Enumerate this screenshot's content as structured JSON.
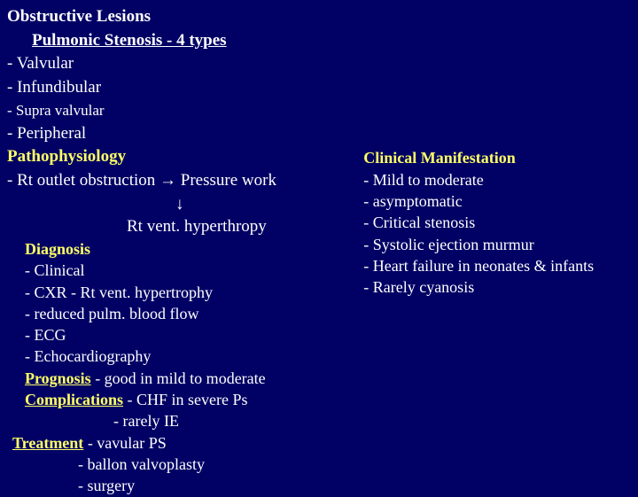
{
  "colors": {
    "background": "#000065",
    "text": "#ffffff",
    "accent": "#ffff66"
  },
  "typography": {
    "family": "Times New Roman",
    "title_size": 19,
    "body_size": 18,
    "small_size": 17
  },
  "header": {
    "title": "Obstructive Lesions",
    "subtitle": "Pulmonic Stenosis - 4 types",
    "types": [
      "- Valvular",
      "- Infundibular",
      "- Supra valvular",
      "- Peripheral"
    ]
  },
  "left": {
    "pathophys_label": "Pathophysiology",
    "patho_line": "- Rt outlet obstruction → Pressure work",
    "arrow": "↓",
    "result": "Rt vent. hyperthropy",
    "diagnosis_label": "Diagnosis",
    "diag_items": [
      "- Clinical",
      "- CXR  - Rt vent. hypertrophy",
      "- reduced pulm. blood flow",
      "- ECG",
      "- Echocardiography"
    ],
    "prognosis_label": "Prognosis",
    "prognosis_text": "  - good in mild to moderate",
    "complications_label": "Complications",
    "complications_text": "   - CHF in severe Ps",
    "complications_line2": "- rarely IE",
    "treatment_label": "Treatment",
    "treatment_text": " - vavular PS",
    "treatment_items": [
      "- ballon valvoplasty",
      "- surgery"
    ]
  },
  "right": {
    "heading": "Clinical Manifestation",
    "items": [
      "- Mild to moderate",
      "- asymptomatic",
      "- Critical stenosis",
      "- Systolic ejection murmur",
      "- Heart failure in neonates & infants",
      "- Rarely cyanosis"
    ]
  }
}
